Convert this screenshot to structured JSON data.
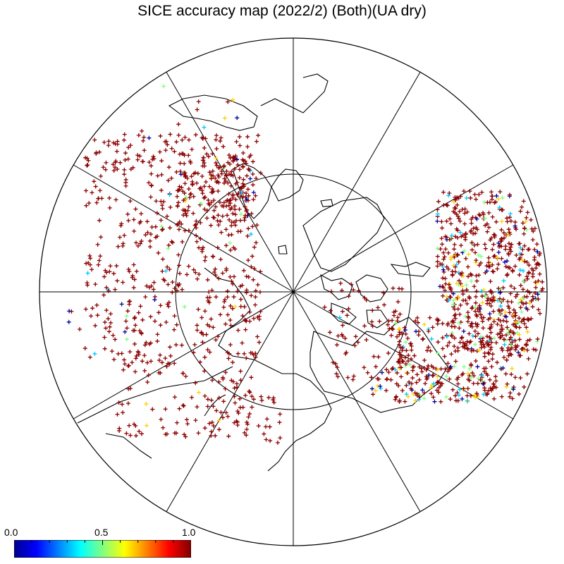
{
  "title": "SICE accuracy map (2022/2) (Both)(UA dry)",
  "colorbar": {
    "ticks": [
      "0.0",
      "0.5",
      "1.0"
    ],
    "min": 0.0,
    "max": 1.0,
    "colormap": [
      "#00008f",
      "#0000ff",
      "#0080ff",
      "#00ffff",
      "#80ff80",
      "#ffff00",
      "#ff8000",
      "#ff0000",
      "#800000"
    ]
  },
  "map": {
    "projection": "north-polar-stereographic",
    "meridian_count": 12,
    "latitude_circle": true,
    "marker": "+",
    "dominant_color": "#8b0000",
    "secondary_colors": [
      "#0000a0",
      "#00c8ff",
      "#80ff80",
      "#ffd000"
    ]
  }
}
